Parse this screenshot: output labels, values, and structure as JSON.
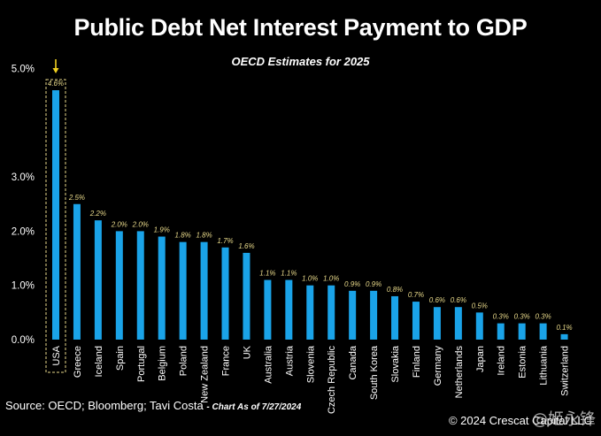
{
  "header": {
    "title": "Public Debt Net Interest Payment to GDP",
    "subtitle": "OECD Estimates for 2025"
  },
  "footer": {
    "source": "Source: OECD; Bloomberg; Tavi Costa",
    "as_of": "- Chart As of 7/27/2024",
    "copyright": "© 2024 Crescat Capital LLC",
    "watermark": "@姬永锋"
  },
  "colors": {
    "bar": "#1aa3e8",
    "label": "#e8d98a",
    "highlight": "#e8d98a",
    "arrow": "#f0d020",
    "background": "#000000"
  },
  "chart_data": {
    "type": "bar",
    "title": "Public Debt Net Interest Payment to GDP",
    "subtitle": "OECD Estimates for 2025",
    "categories": [
      "USA",
      "Greece",
      "Iceland",
      "Spain",
      "Portugal",
      "Belgium",
      "Poland",
      "New Zealand",
      "France",
      "UK",
      "Australia",
      "Austria",
      "Slovenia",
      "Czech Republic",
      "Canada",
      "South Korea",
      "Slovakia",
      "Finland",
      "Germany",
      "Netherlands",
      "Japan",
      "Ireland",
      "Estonia",
      "Lithuania",
      "Switzerland"
    ],
    "values": [
      4.6,
      2.5,
      2.2,
      2.0,
      2.0,
      1.9,
      1.8,
      1.8,
      1.7,
      1.6,
      1.1,
      1.1,
      1.0,
      1.0,
      0.9,
      0.9,
      0.8,
      0.7,
      0.6,
      0.6,
      0.5,
      0.3,
      0.3,
      0.3,
      0.1
    ],
    "value_labels": [
      "4.6%",
      "2.5%",
      "2.2%",
      "2.0%",
      "2.0%",
      "1.9%",
      "1.8%",
      "1.8%",
      "1.7%",
      "1.6%",
      "1.1%",
      "1.1%",
      "1.0%",
      "1.0%",
      "0.9%",
      "0.9%",
      "0.8%",
      "0.7%",
      "0.6%",
      "0.6%",
      "0.5%",
      "0.3%",
      "0.3%",
      "0.3%",
      "0.1%"
    ],
    "yticks": [
      "0.0%",
      "1.0%",
      "2.0%",
      "3.0%",
      "5.0%"
    ],
    "ytick_values": [
      0,
      1,
      2,
      3,
      5
    ],
    "ylim": [
      0,
      5
    ],
    "grid": false,
    "legend": "none",
    "highlighted_category": "USA"
  }
}
